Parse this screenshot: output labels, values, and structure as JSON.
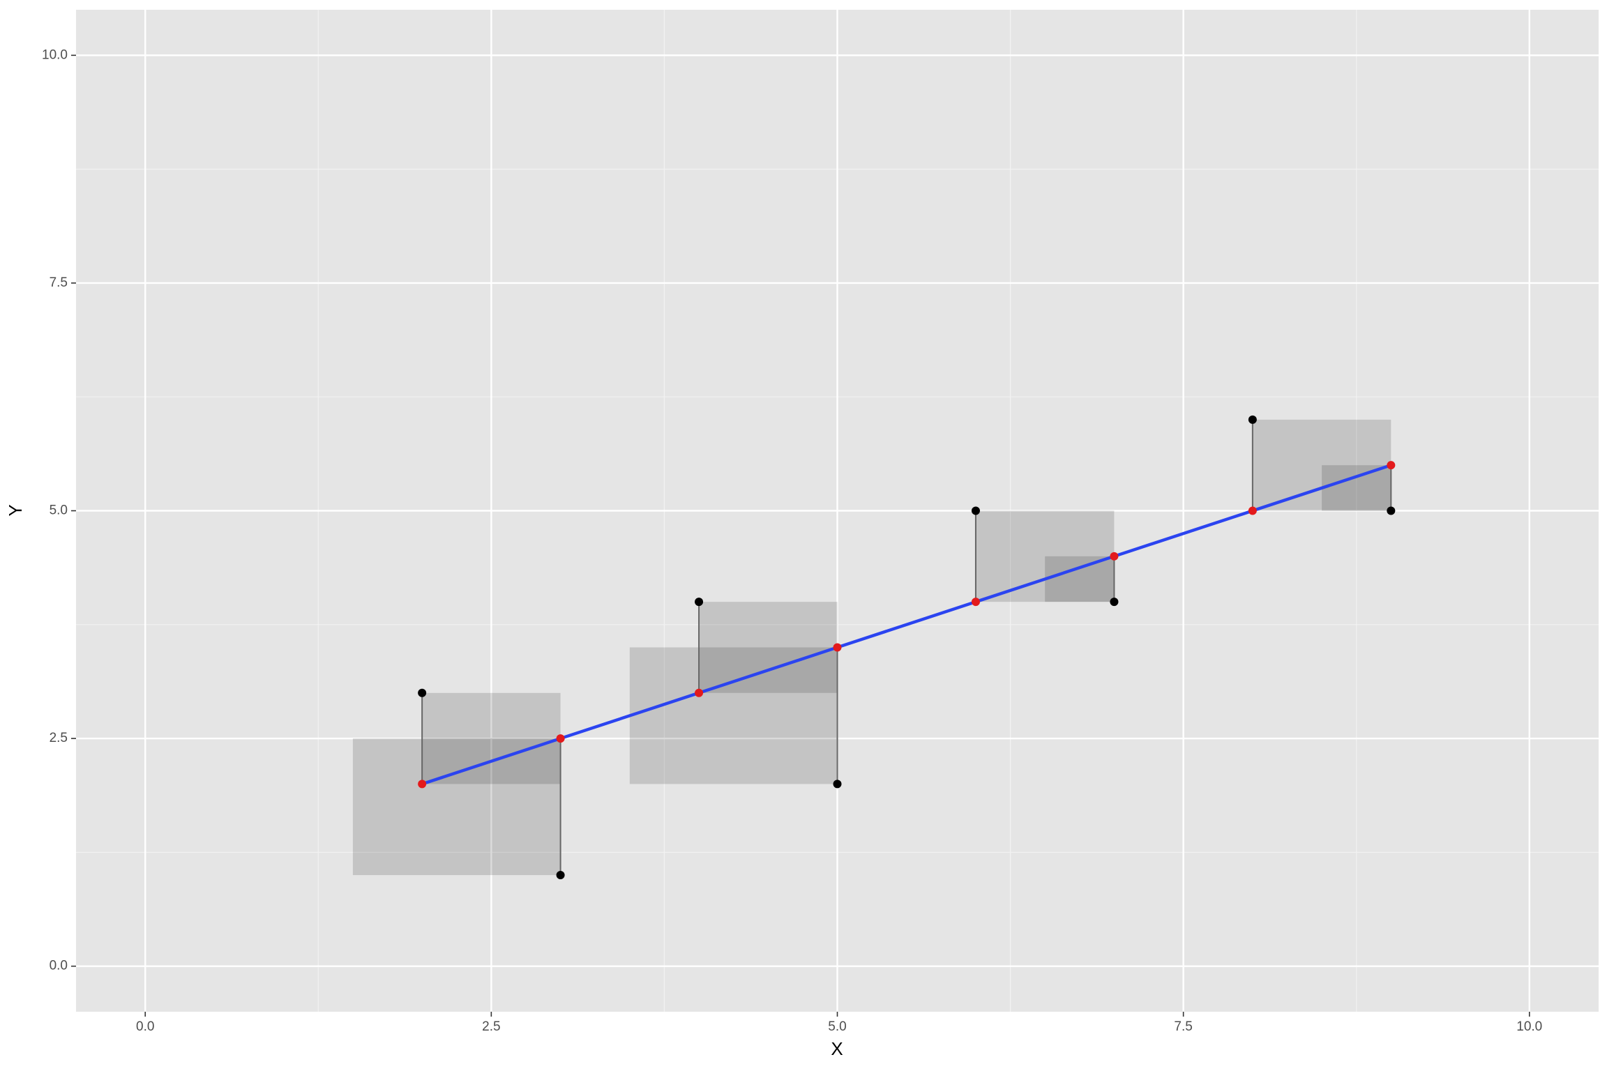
{
  "chart_data": {
    "type": "scatter",
    "x_label": "X",
    "y_label": "Y",
    "x": [
      2,
      3,
      4,
      5,
      6,
      7,
      8,
      9
    ],
    "values": [
      3,
      1,
      4,
      2,
      5,
      4,
      6,
      5
    ],
    "fitted": [
      2,
      2.5,
      3,
      3.5,
      4,
      4.5,
      5,
      5.5
    ],
    "point_color": "#000000",
    "fitted_color": "#e31a1c",
    "line_color": "#2b44f0",
    "xlim": [
      -0.5,
      10.5
    ],
    "ylim": [
      -0.5,
      10.5
    ],
    "xticks": [
      {
        "value": 0,
        "label": "0.0"
      },
      2.5,
      {
        "value": 5,
        "label": "5.0"
      },
      7.5,
      {
        "value": 10,
        "label": "10.0"
      }
    ],
    "yticks": [
      {
        "value": 0,
        "label": "0.0"
      },
      2.5,
      {
        "value": 5,
        "label": "5.0"
      },
      7.5,
      {
        "value": 10,
        "label": "10.0"
      }
    ],
    "grid": true
  }
}
